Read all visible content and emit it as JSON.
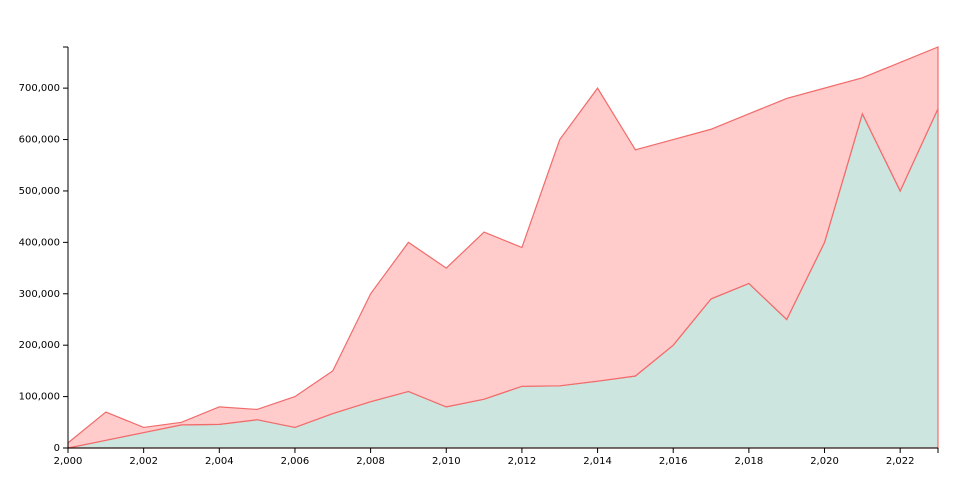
{
  "chart_data": {
    "type": "stacked-area",
    "x": [
      2000,
      2001,
      2002,
      2003,
      2004,
      2005,
      2006,
      2007,
      2008,
      2009,
      2010,
      2011,
      2012,
      2013,
      2014,
      2015,
      2016,
      2017,
      2018,
      2019,
      2020,
      2021,
      2022,
      2023
    ],
    "series": [
      {
        "color": "#cce5df",
        "values": [
          0,
          15000,
          30000,
          45000,
          46000,
          55000,
          40000,
          67000,
          90000,
          110000,
          80000,
          95000,
          120000,
          121000,
          130000,
          140000,
          200000,
          290000,
          320000,
          250000,
          400000,
          650000,
          500000,
          660000
        ]
      },
      {
        "color": "#ffcbcb",
        "values": [
          10000,
          55000,
          10000,
          5000,
          34000,
          20000,
          60000,
          83000,
          210000,
          290000,
          270000,
          325000,
          270000,
          479000,
          570000,
          440000,
          400000,
          330000,
          330000,
          430000,
          300000,
          70000,
          250000,
          120000
        ]
      }
    ],
    "stroke": "#f26b6b",
    "xlim": [
      2000,
      2023
    ],
    "xticks": [
      {
        "value": 2000,
        "label": "2,000"
      },
      {
        "value": 2002,
        "label": "2,002"
      },
      {
        "value": 2004,
        "label": "2,004"
      },
      {
        "value": 2006,
        "label": "2,006"
      },
      {
        "value": 2008,
        "label": "2,008"
      },
      {
        "value": 2010,
        "label": "2,010"
      },
      {
        "value": 2012,
        "label": "2,012"
      },
      {
        "value": 2014,
        "label": "2,014"
      },
      {
        "value": 2016,
        "label": "2,016"
      },
      {
        "value": 2018,
        "label": "2,018"
      },
      {
        "value": 2020,
        "label": "2,020"
      },
      {
        "value": 2022,
        "label": "2,022"
      }
    ],
    "ylim": [
      0,
      780000
    ],
    "yticks": [
      0,
      {
        "value": 100000,
        "label": "100,000"
      },
      {
        "value": 200000,
        "label": "200,000"
      },
      {
        "value": 300000,
        "label": "300,000"
      },
      {
        "value": 400000,
        "label": "400,000"
      },
      {
        "value": 500000,
        "label": "500,000"
      },
      {
        "value": 600000,
        "label": "600,000"
      },
      {
        "value": 700000,
        "label": "700,000"
      }
    ]
  }
}
